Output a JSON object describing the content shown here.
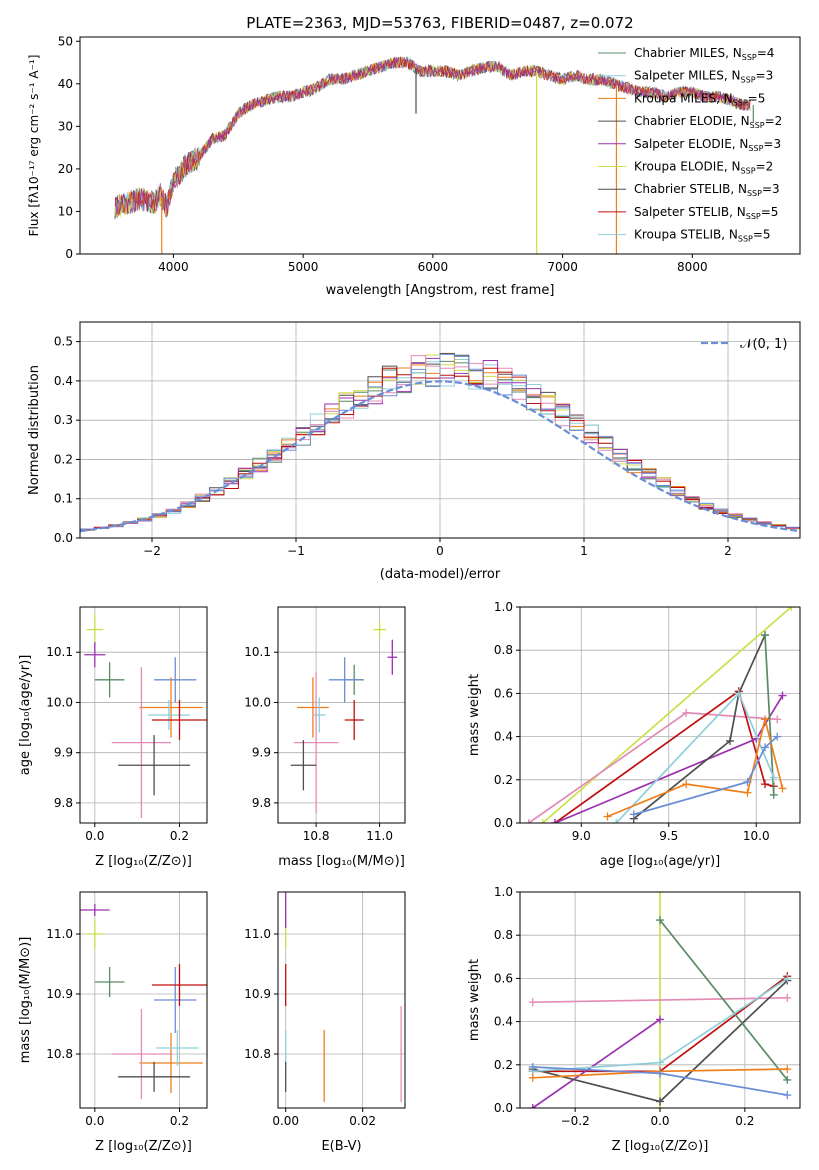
{
  "figure": {
    "title": "PLATE=2363, MJD=53763, FIBERID=0487, z=0.072"
  },
  "colors": [
    "#6a8ed6",
    "#ef7f1a",
    "#e38bb5",
    "#4e4e4e",
    "#ccdf4a",
    "#8fcfda",
    "#5a8a64",
    "#9b30b0",
    "#c00e0e"
  ],
  "models": [
    {
      "label": "Chabrier MILES, N",
      "nssp": "4",
      "color": "#5a8a64"
    },
    {
      "label": "Salpeter MILES, N",
      "nssp": "3",
      "color": "#8fcfda"
    },
    {
      "label": "Kroupa MILES, N",
      "nssp": "5",
      "color": "#ef7f1a"
    },
    {
      "label": "Chabrier ELODIE, N",
      "nssp": "2",
      "color": "#4e4e4e"
    },
    {
      "label": "Salpeter ELODIE, N",
      "nssp": "3",
      "color": "#9b30b0"
    },
    {
      "label": "Kroupa ELODIE, N",
      "nssp": "2",
      "color": "#ccdf4a"
    },
    {
      "label": "Chabrier STELIB, N",
      "nssp": "3",
      "color": "#4e4e4e"
    },
    {
      "label": "Salpeter STELIB, N",
      "nssp": "5",
      "color": "#c00e0e"
    },
    {
      "label": "Kroupa STELIB, N",
      "nssp": "5",
      "color": "#8fcfda"
    }
  ],
  "chart_data": [
    {
      "id": "spectrum",
      "type": "line",
      "xlabel": "wavelength [Angstrom, rest frame]",
      "ylabel": "Flux [f_λ10^-17 erg cm^-2 s^-1 A^-1]",
      "xlim": [
        3280,
        8830
      ],
      "ylim": [
        0,
        51
      ],
      "xticks": [
        4000,
        5000,
        6000,
        7000,
        8000
      ],
      "yticks": [
        0,
        10,
        20,
        30,
        40,
        50
      ],
      "envelope": [
        [
          3550,
          11
        ],
        [
          3650,
          12
        ],
        [
          3750,
          13
        ],
        [
          3850,
          12
        ],
        [
          3900,
          14
        ],
        [
          3950,
          11
        ],
        [
          4000,
          17
        ],
        [
          4100,
          21
        ],
        [
          4200,
          23
        ],
        [
          4300,
          27
        ],
        [
          4400,
          28
        ],
        [
          4500,
          33
        ],
        [
          4600,
          35
        ],
        [
          4700,
          36
        ],
        [
          4800,
          37
        ],
        [
          4900,
          37
        ],
        [
          5000,
          38
        ],
        [
          5100,
          39
        ],
        [
          5200,
          41
        ],
        [
          5300,
          41
        ],
        [
          5400,
          42
        ],
        [
          5500,
          43
        ],
        [
          5600,
          44
        ],
        [
          5700,
          45
        ],
        [
          5800,
          45
        ],
        [
          5900,
          43
        ],
        [
          6000,
          43
        ],
        [
          6100,
          43
        ],
        [
          6200,
          42
        ],
        [
          6300,
          43
        ],
        [
          6400,
          44
        ],
        [
          6500,
          44
        ],
        [
          6600,
          42
        ],
        [
          6700,
          43
        ],
        [
          6800,
          43
        ],
        [
          6900,
          42
        ],
        [
          7000,
          41
        ],
        [
          7100,
          42
        ],
        [
          7200,
          41
        ],
        [
          7300,
          41
        ],
        [
          7400,
          40
        ],
        [
          7500,
          39
        ],
        [
          7600,
          38
        ],
        [
          7700,
          38
        ],
        [
          7800,
          37
        ],
        [
          7900,
          38
        ],
        [
          8000,
          38
        ],
        [
          8100,
          37
        ],
        [
          8200,
          37
        ],
        [
          8300,
          36
        ],
        [
          8400,
          35
        ],
        [
          8450,
          35
        ]
      ],
      "spikes": [
        [
          3910,
          0,
          "#ef7f1a"
        ],
        [
          6800,
          0,
          "#ccdf4a"
        ],
        [
          7415,
          0,
          "#ef7f1a"
        ],
        [
          8470,
          31,
          "#5a8a64"
        ],
        [
          5870,
          33,
          "#4e4e4e"
        ]
      ]
    },
    {
      "id": "residuals",
      "type": "histogram",
      "xlabel": "(data-model)/error",
      "ylabel": "Normed distribution",
      "xlim": [
        -2.5,
        2.5
      ],
      "ylim": [
        0,
        0.55
      ],
      "xticks": [
        -2,
        -1,
        0,
        1,
        2
      ],
      "yticks": [
        0.0,
        0.1,
        0.2,
        0.3,
        0.4,
        0.5
      ],
      "bin_width": 0.1,
      "gaussian_label": "𝒩(0, 1)",
      "gaussian_color": "#6a8ed6"
    },
    {
      "id": "age_vs_Z",
      "type": "scatter",
      "xlabel": "Z [log10(Z/Z⊙)]",
      "ylabel": "age [log10(age/yr)]",
      "xlim": [
        -0.035,
        0.265
      ],
      "ylim": [
        9.76,
        10.19
      ],
      "xticks": [
        0.0,
        0.2
      ],
      "yticks": [
        9.8,
        9.9,
        10.0,
        10.1
      ],
      "points": [
        {
          "x": 0.0,
          "y": 10.145,
          "xerr": 0.02,
          "yerr": 0.03,
          "c": "#ccdf4a"
        },
        {
          "x": 0.0,
          "y": 10.095,
          "xerr": 0.025,
          "yerr": 0.025,
          "c": "#9b30b0"
        },
        {
          "x": 0.035,
          "y": 10.045,
          "xerr": 0.035,
          "yerr": 0.035,
          "c": "#5a8a64"
        },
        {
          "x": 0.19,
          "y": 10.045,
          "xerr": 0.05,
          "yerr": 0.045,
          "c": "#6a8ed6"
        },
        {
          "x": 0.18,
          "y": 9.99,
          "xerr": 0.075,
          "yerr": 0.06,
          "c": "#ef7f1a"
        },
        {
          "x": 0.175,
          "y": 9.975,
          "xerr": 0.05,
          "yerr": 0.03,
          "c": "#8fcfda"
        },
        {
          "x": 0.2,
          "y": 9.965,
          "xerr": 0.065,
          "yerr": 0.04,
          "c": "#c00e0e"
        },
        {
          "x": 0.11,
          "y": 9.92,
          "xerr": 0.07,
          "yerr": 0.15,
          "c": "#e38bb5"
        },
        {
          "x": 0.14,
          "y": 9.875,
          "xerr": 0.085,
          "yerr": 0.06,
          "c": "#4e4e4e"
        }
      ]
    },
    {
      "id": "age_vs_mass",
      "type": "scatter",
      "xlabel": "mass [log10(M/M⊙)]",
      "ylabel": "",
      "xlim": [
        10.68,
        11.08
      ],
      "ylim": [
        9.76,
        10.19
      ],
      "xticks": [
        10.8,
        11.0
      ],
      "yticks": [
        9.8,
        9.9,
        10.0,
        10.1
      ],
      "points": [
        {
          "x": 11.0,
          "y": 10.145,
          "xerr": 0.02,
          "yerr": 0.015,
          "c": "#ccdf4a"
        },
        {
          "x": 11.04,
          "y": 10.09,
          "xerr": 0.015,
          "yerr": 0.035,
          "c": "#9b30b0"
        },
        {
          "x": 10.92,
          "y": 10.045,
          "xerr": 0.03,
          "yerr": 0.03,
          "c": "#5a8a64"
        },
        {
          "x": 10.89,
          "y": 10.045,
          "xerr": 0.05,
          "yerr": 0.045,
          "c": "#6a8ed6"
        },
        {
          "x": 10.79,
          "y": 9.99,
          "xerr": 0.05,
          "yerr": 0.06,
          "c": "#ef7f1a"
        },
        {
          "x": 10.81,
          "y": 9.975,
          "xerr": 0.02,
          "yerr": 0.035,
          "c": "#8fcfda"
        },
        {
          "x": 10.92,
          "y": 9.965,
          "xerr": 0.03,
          "yerr": 0.04,
          "c": "#c00e0e"
        },
        {
          "x": 10.8,
          "y": 9.92,
          "xerr": 0.07,
          "yerr": 0.14,
          "c": "#e38bb5"
        },
        {
          "x": 10.76,
          "y": 9.875,
          "xerr": 0.04,
          "yerr": 0.05,
          "c": "#4e4e4e"
        }
      ]
    },
    {
      "id": "massweight_vs_age",
      "type": "line",
      "xlabel": "age [log10(age/yr)]",
      "ylabel": "mass weight",
      "xlim": [
        8.65,
        10.25
      ],
      "ylim": [
        0,
        1.0
      ],
      "xticks": [
        9.0,
        9.5,
        10.0
      ],
      "yticks": [
        0.0,
        0.2,
        0.4,
        0.6,
        0.8,
        1.0
      ],
      "series": [
        {
          "c": "#ccdf4a",
          "x": [
            8.78,
            10.2
          ],
          "y": [
            0.0,
            1.0
          ]
        },
        {
          "c": "#e38bb5",
          "x": [
            8.7,
            9.6,
            10.12
          ],
          "y": [
            0.0,
            0.51,
            0.48
          ]
        },
        {
          "c": "#c00e0e",
          "x": [
            8.85,
            9.9,
            10.05,
            10.1
          ],
          "y": [
            0.0,
            0.61,
            0.18,
            0.17
          ]
        },
        {
          "c": "#9b30b0",
          "x": [
            8.85,
            10.0,
            10.15
          ],
          "y": [
            0.0,
            0.39,
            0.59
          ]
        },
        {
          "c": "#4e4e4e",
          "x": [
            9.3,
            9.85,
            9.9,
            10.05
          ],
          "y": [
            0.02,
            0.38,
            0.6,
            0.87
          ]
        },
        {
          "c": "#5a8a64",
          "x": [
            10.05,
            10.1
          ],
          "y": [
            0.87,
            0.13
          ]
        },
        {
          "c": "#8fcfda",
          "x": [
            9.2,
            9.9,
            10.1
          ],
          "y": [
            0.0,
            0.6,
            0.21
          ]
        },
        {
          "c": "#ef7f1a",
          "x": [
            9.15,
            9.6,
            9.95,
            10.05,
            10.15
          ],
          "y": [
            0.03,
            0.18,
            0.14,
            0.48,
            0.16
          ]
        },
        {
          "c": "#6a8ed6",
          "x": [
            9.3,
            9.95,
            10.05,
            10.12
          ],
          "y": [
            0.04,
            0.19,
            0.35,
            0.4
          ]
        }
      ]
    },
    {
      "id": "mass_vs_Z",
      "type": "scatter",
      "xlabel": "Z [log10(Z/Z⊙)]",
      "ylabel": "mass [log10(M/M⊙)]",
      "xlim": [
        -0.035,
        0.265
      ],
      "ylim": [
        10.71,
        11.07
      ],
      "xticks": [
        0.0,
        0.2
      ],
      "yticks": [
        10.8,
        10.9,
        11.0
      ],
      "points": [
        {
          "x": 0.0,
          "y": 11.0,
          "xerr": 0.02,
          "yerr": 0.025,
          "c": "#ccdf4a"
        },
        {
          "x": 0.0,
          "y": 11.04,
          "xerr": 0.035,
          "yerr": 0.01,
          "c": "#9b30b0"
        },
        {
          "x": 0.035,
          "y": 10.92,
          "xerr": 0.035,
          "yerr": 0.025,
          "c": "#5a8a64"
        },
        {
          "x": 0.19,
          "y": 10.89,
          "xerr": 0.05,
          "yerr": 0.055,
          "c": "#6a8ed6"
        },
        {
          "x": 0.2,
          "y": 10.915,
          "xerr": 0.065,
          "yerr": 0.035,
          "c": "#c00e0e"
        },
        {
          "x": 0.18,
          "y": 10.785,
          "xerr": 0.075,
          "yerr": 0.05,
          "c": "#ef7f1a"
        },
        {
          "x": 0.195,
          "y": 10.81,
          "xerr": 0.05,
          "yerr": 0.03,
          "c": "#8fcfda"
        },
        {
          "x": 0.11,
          "y": 10.8,
          "xerr": 0.07,
          "yerr": 0.075,
          "c": "#e38bb5"
        },
        {
          "x": 0.14,
          "y": 10.762,
          "xerr": 0.085,
          "yerr": 0.025,
          "c": "#4e4e4e"
        }
      ]
    },
    {
      "id": "mass_vs_EBV",
      "type": "scatter",
      "xlabel": "E(B-V)",
      "ylabel": "",
      "xlim": [
        -0.002,
        0.031
      ],
      "ylim": [
        10.71,
        11.07
      ],
      "xticks": [
        0.0,
        0.02
      ],
      "yticks": [
        10.8,
        10.9,
        11.0
      ],
      "points": [
        {
          "x": 0.0,
          "y": 11.0,
          "xerr": 0,
          "yerr": 0.025,
          "c": "#ccdf4a"
        },
        {
          "x": 0.0,
          "y": 11.04,
          "xerr": 0,
          "yerr": 0.03,
          "c": "#9b30b0"
        },
        {
          "x": 0.0,
          "y": 10.915,
          "xerr": 0,
          "yerr": 0.035,
          "c": "#c00e0e"
        },
        {
          "x": 0.0,
          "y": 10.81,
          "xerr": 0,
          "yerr": 0.03,
          "c": "#8fcfda"
        },
        {
          "x": 0.0,
          "y": 10.762,
          "xerr": 0,
          "yerr": 0.025,
          "c": "#4e4e4e"
        },
        {
          "x": 0.01,
          "y": 10.78,
          "xerr": 0,
          "yerr": 0.06,
          "c": "#ef7f1a"
        },
        {
          "x": 0.03,
          "y": 10.8,
          "xerr": 0,
          "yerr": 0.08,
          "c": "#e38bb5"
        }
      ]
    },
    {
      "id": "massweight_vs_Z",
      "type": "line",
      "xlabel": "Z [log10(Z/Z⊙)]",
      "ylabel": "mass weight",
      "xlim": [
        -0.33,
        0.33
      ],
      "ylim": [
        0,
        1.0
      ],
      "xticks": [
        -0.2,
        0.0,
        0.2
      ],
      "yticks": [
        0.0,
        0.2,
        0.4,
        0.6,
        0.8,
        1.0
      ],
      "series": [
        {
          "c": "#ccdf4a",
          "x": [
            0.0,
            0.0
          ],
          "y": [
            0.0,
            1.0
          ]
        },
        {
          "c": "#e38bb5",
          "x": [
            -0.3,
            0.3
          ],
          "y": [
            0.49,
            0.51
          ]
        },
        {
          "c": "#c00e0e",
          "x": [
            -0.3,
            0.0,
            0.3
          ],
          "y": [
            0.17,
            0.17,
            0.61
          ]
        },
        {
          "c": "#9b30b0",
          "x": [
            -0.3,
            0.0
          ],
          "y": [
            0.0,
            0.41
          ]
        },
        {
          "c": "#4e4e4e",
          "x": [
            -0.3,
            0.0,
            0.3
          ],
          "y": [
            0.18,
            0.03,
            0.59
          ]
        },
        {
          "c": "#5a8a64",
          "x": [
            0.0,
            0.3
          ],
          "y": [
            0.87,
            0.13
          ]
        },
        {
          "c": "#8fcfda",
          "x": [
            -0.3,
            0.0,
            0.3
          ],
          "y": [
            0.17,
            0.21,
            0.6
          ]
        },
        {
          "c": "#ef7f1a",
          "x": [
            -0.3,
            0.0,
            0.3
          ],
          "y": [
            0.14,
            0.17,
            0.18
          ]
        },
        {
          "c": "#6a8ed6",
          "x": [
            -0.3,
            0.0,
            0.3
          ],
          "y": [
            0.19,
            0.16,
            0.06
          ]
        }
      ]
    }
  ]
}
